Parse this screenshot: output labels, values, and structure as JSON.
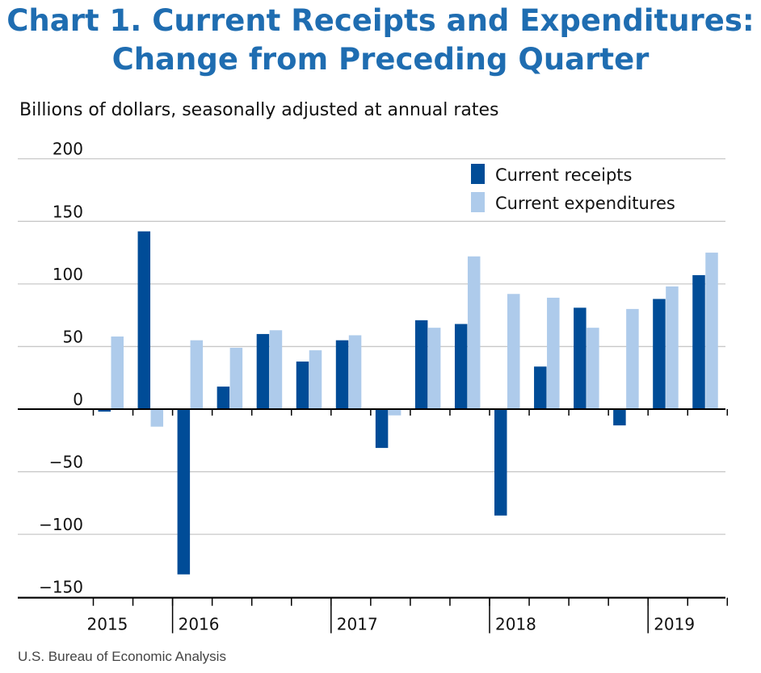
{
  "title_line1": "Chart 1. Current Receipts and Expenditures:",
  "title_line2": "Change from Preceding Quarter",
  "subtitle": "Billions of dollars, seasonally adjusted at annual rates",
  "source": "U.S. Bureau of Economic Analysis",
  "colors": {
    "receipts": "#004c97",
    "expenditures": "#aecbeb",
    "title": "#1f6db1",
    "grid": "#c8c8c8"
  },
  "chart_data": {
    "type": "bar",
    "categories": [
      "2015 Q3",
      "2015 Q4",
      "2016 Q1",
      "2016 Q2",
      "2016 Q3",
      "2016 Q4",
      "2017 Q1",
      "2017 Q2",
      "2017 Q3",
      "2017 Q4",
      "2018 Q1",
      "2018 Q2",
      "2018 Q3",
      "2018 Q4",
      "2019 Q1",
      "2019 Q2"
    ],
    "series": [
      {
        "name": "Current receipts",
        "values": [
          -2,
          142,
          -132,
          18,
          60,
          38,
          55,
          -31,
          71,
          68,
          -85,
          34,
          81,
          -13,
          88,
          107
        ]
      },
      {
        "name": "Current expenditures",
        "values": [
          58,
          -14,
          55,
          49,
          63,
          47,
          59,
          -5,
          65,
          122,
          92,
          89,
          65,
          80,
          98,
          125
        ]
      }
    ],
    "year_labels": [
      "2015",
      "2016",
      "2017",
      "2018",
      "2019"
    ],
    "y_ticks": [
      200,
      150,
      100,
      50,
      0,
      -50,
      -100,
      -150
    ],
    "y_tick_labels": [
      "200",
      "150",
      "100",
      "50",
      "0",
      "−50",
      "−100",
      "−150"
    ],
    "ylim": [
      -150,
      200
    ],
    "grid": true,
    "legend_position": "top-right",
    "xlabel": "",
    "ylabel": ""
  }
}
